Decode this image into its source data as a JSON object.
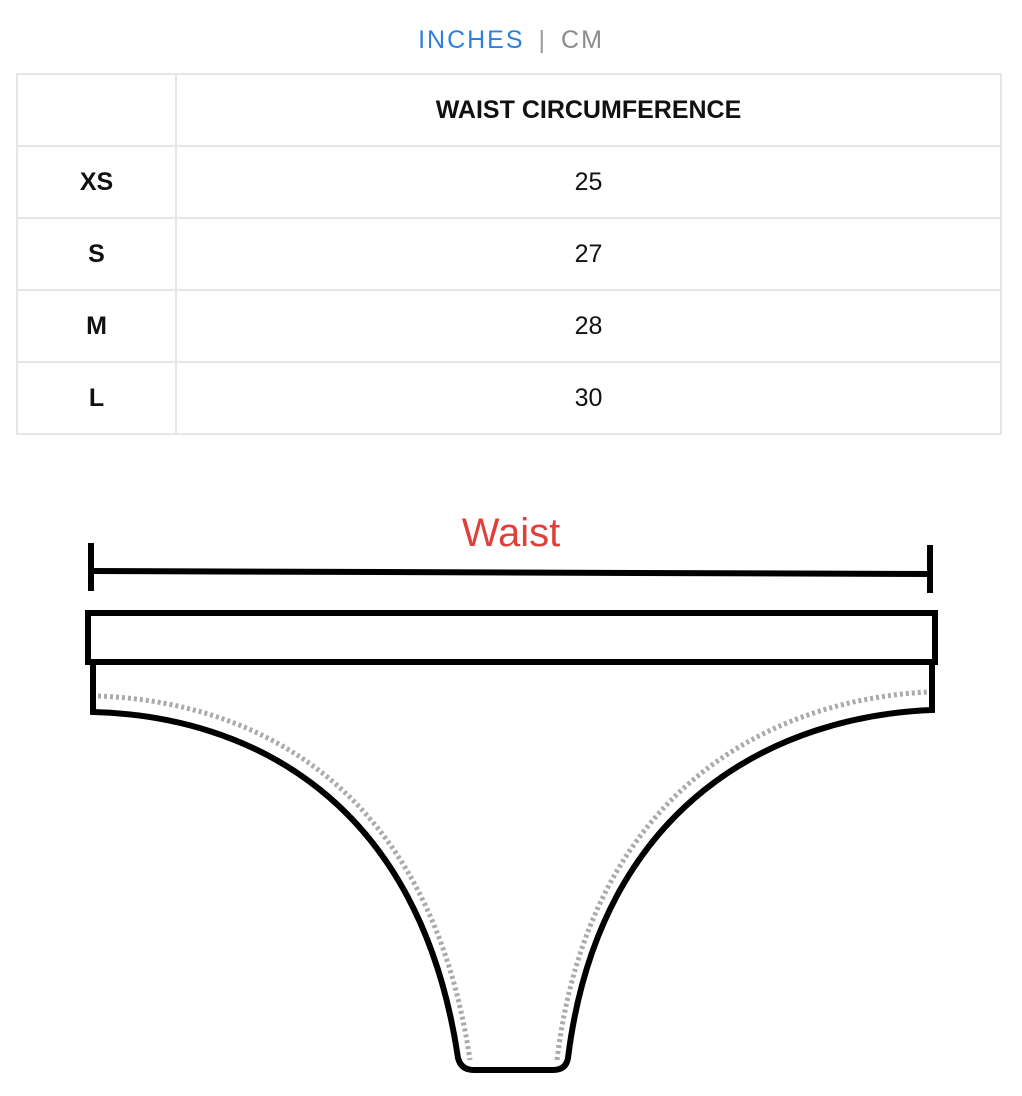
{
  "units": {
    "inches": "INCHES",
    "separator": "|",
    "cm": "CM",
    "active": "INCHES",
    "active_color": "#2d7fe0"
  },
  "table": {
    "header": [
      "",
      "WAIST CIRCUMFERENCE"
    ],
    "rows": [
      {
        "size": "XS",
        "waist": "25"
      },
      {
        "size": "S",
        "waist": "27"
      },
      {
        "size": "M",
        "waist": "28"
      },
      {
        "size": "L",
        "waist": "30"
      }
    ]
  },
  "diagram": {
    "label": "Waist",
    "label_color": "#e0403a"
  }
}
